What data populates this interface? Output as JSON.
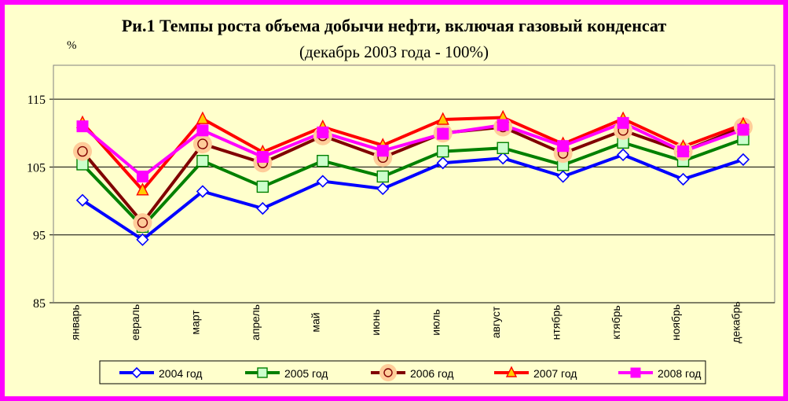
{
  "chart_data": {
    "type": "line",
    "title": "Ри.1 Темпы роста объема добычи нефти, включая газовый конденсат",
    "subtitle": "(декабрь 2003 года - 100%)",
    "ylabel": "%",
    "xlabel": "",
    "ylim": [
      85,
      120
    ],
    "yticks": [
      85,
      95,
      105,
      115
    ],
    "grid": true,
    "legend": "bottom",
    "categories": [
      "январь",
      "февраль",
      "март",
      "апрель",
      "май",
      "июнь",
      "июль",
      "август",
      "сентябрь",
      "октябрь",
      "ноябрь",
      "декабрь"
    ],
    "category_labels_visible": [
      "январь",
      "евраль",
      "март",
      "апрель",
      "май",
      "июнь",
      "июль",
      "август",
      "нтябрь",
      "ктябрь",
      "ноябрь",
      "декабрь"
    ],
    "series": [
      {
        "name": "2004 год",
        "color": "#0000ff",
        "marker": "diamond",
        "values": [
          100.1,
          94.3,
          101.4,
          98.9,
          102.9,
          101.8,
          105.6,
          106.3,
          103.6,
          106.8,
          103.2,
          106.1
        ]
      },
      {
        "name": "2005 год",
        "color": "#008000",
        "marker": "square-open",
        "values": [
          105.4,
          96.2,
          105.9,
          102.1,
          105.9,
          103.6,
          107.3,
          107.8,
          105.3,
          108.6,
          105.9,
          109.1
        ]
      },
      {
        "name": "2006 год",
        "color": "#800000",
        "marker": "circle-halo",
        "values": [
          107.3,
          96.8,
          108.4,
          105.6,
          109.6,
          106.4,
          110.0,
          110.9,
          107.0,
          110.4,
          107.3,
          110.9
        ]
      },
      {
        "name": "2007 год",
        "color": "#ff0000",
        "marker": "triangle",
        "values": [
          111.5,
          101.6,
          112.1,
          107.2,
          110.9,
          108.2,
          112.0,
          112.3,
          108.4,
          112.1,
          108.0,
          111.3
        ]
      },
      {
        "name": "2008 год",
        "color": "#ff00ff",
        "marker": "square-filled",
        "values": [
          111.0,
          103.6,
          110.4,
          106.5,
          110.1,
          107.4,
          109.9,
          111.2,
          108.1,
          111.5,
          107.3,
          110.5
        ]
      }
    ]
  }
}
